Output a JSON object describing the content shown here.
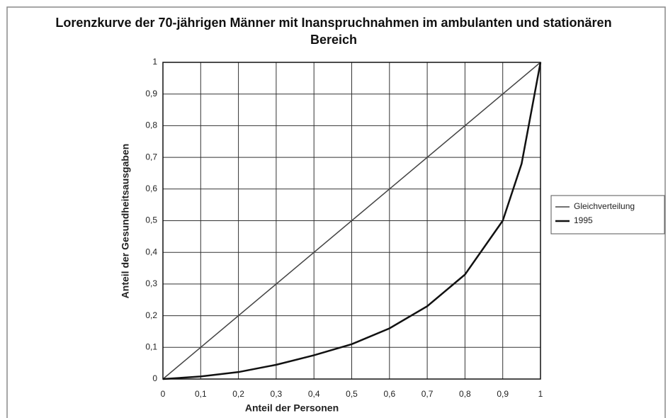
{
  "chart_data": {
    "type": "line",
    "title": "Lorenzkurve der 70-jährigen Männer mit Inanspruchnahmen im ambulanten und stationären Bereich",
    "x_label": "Anteil der Personen",
    "y_label": "Anteil der Gesundheitsausgaben",
    "xlim": [
      0,
      1
    ],
    "ylim": [
      0,
      1
    ],
    "xticks": [
      0,
      {
        "value": 0.1,
        "label": "0,1"
      },
      {
        "value": 0.2,
        "label": "0,2"
      },
      {
        "value": 0.3,
        "label": "0,3"
      },
      {
        "value": 0.4,
        "label": "0,4"
      },
      {
        "value": 0.5,
        "label": "0,5"
      },
      {
        "value": 0.6,
        "label": "0,6"
      },
      {
        "value": 0.7,
        "label": "0,7"
      },
      {
        "value": 0.8,
        "label": "0,8"
      },
      {
        "value": 0.9,
        "label": "0,9"
      },
      1
    ],
    "yticks": [
      0,
      {
        "value": 0.1,
        "label": "0,1"
      },
      {
        "value": 0.2,
        "label": "0,2"
      },
      {
        "value": 0.3,
        "label": "0,3"
      },
      {
        "value": 0.4,
        "label": "0,4"
      },
      {
        "value": 0.5,
        "label": "0,5"
      },
      {
        "value": 0.6,
        "label": "0,6"
      },
      {
        "value": 0.7,
        "label": "0,7"
      },
      {
        "value": 0.8,
        "label": "0,8"
      },
      {
        "value": 0.9,
        "label": "0,9"
      },
      1
    ],
    "grid": true,
    "legend": "right",
    "series": [
      {
        "name": "Gleichverteilung",
        "color": "#444444",
        "width": 1.5,
        "x": [
          0,
          1
        ],
        "values": [
          0,
          1
        ]
      },
      {
        "name": "1995",
        "color": "#111111",
        "width": 2.5,
        "x": [
          0,
          0.1,
          0.2,
          0.3,
          0.4,
          0.5,
          0.6,
          0.7,
          0.8,
          0.9,
          0.95,
          1
        ],
        "values": [
          0,
          0.008,
          0.022,
          0.045,
          0.075,
          0.11,
          0.16,
          0.23,
          0.33,
          0.5,
          0.68,
          1
        ]
      }
    ]
  }
}
